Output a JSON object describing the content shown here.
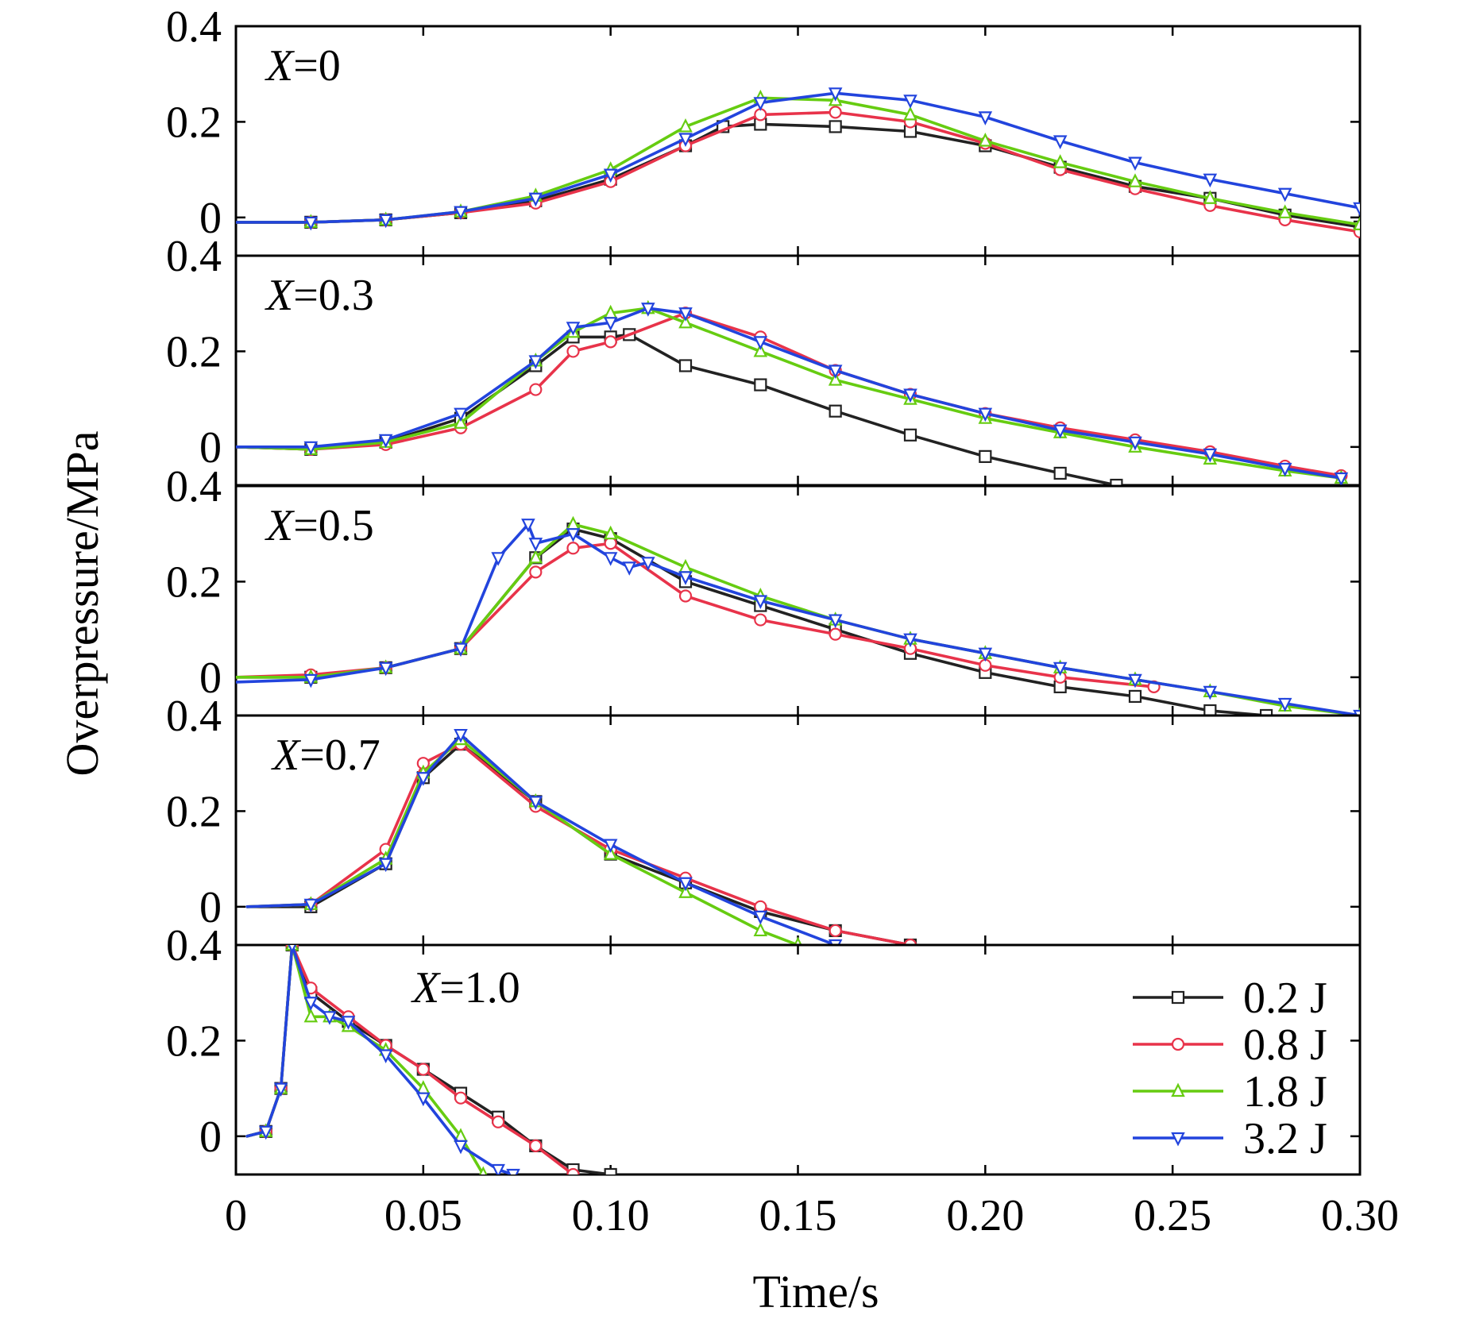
{
  "chart_data": {
    "type": "line",
    "xlabel": "Time/s",
    "ylabel": "Overpressure/MPa",
    "x_ticks": [
      "0",
      "0.05",
      "0.10",
      "0.15",
      "0.20",
      "0.25",
      "0.30"
    ],
    "y_ticks": [
      "0",
      "0.2",
      "0.4"
    ],
    "xlim": [
      0,
      0.3
    ],
    "ylim": [
      -0.08,
      0.4
    ],
    "legend_position": "bottom-right",
    "panels": [
      {
        "label_var": "X",
        "label_val": "=0",
        "series": [
          {
            "name": "0.2 J",
            "color": "#222222",
            "marker": "square",
            "x": [
              0.0,
              0.02,
              0.04,
              0.06,
              0.08,
              0.1,
              0.12,
              0.13,
              0.14,
              0.16,
              0.18,
              0.2,
              0.22,
              0.24,
              0.26,
              0.28,
              0.3
            ],
            "y": [
              -0.01,
              -0.01,
              -0.005,
              0.01,
              0.035,
              0.08,
              0.15,
              0.19,
              0.195,
              0.19,
              0.18,
              0.15,
              0.105,
              0.065,
              0.04,
              0.005,
              -0.02
            ]
          },
          {
            "name": "0.8 J",
            "color": "#e8334a",
            "marker": "circle",
            "x": [
              0.0,
              0.02,
              0.04,
              0.06,
              0.08,
              0.1,
              0.12,
              0.14,
              0.16,
              0.18,
              0.2,
              0.22,
              0.24,
              0.26,
              0.28,
              0.3
            ],
            "y": [
              -0.01,
              -0.01,
              -0.005,
              0.01,
              0.03,
              0.075,
              0.15,
              0.215,
              0.22,
              0.2,
              0.155,
              0.1,
              0.06,
              0.025,
              -0.005,
              -0.03
            ]
          },
          {
            "name": "1.8 J",
            "color": "#66cc11",
            "marker": "triangle-up",
            "x": [
              0.0,
              0.02,
              0.04,
              0.06,
              0.08,
              0.1,
              0.12,
              0.14,
              0.16,
              0.18,
              0.2,
              0.22,
              0.24,
              0.26,
              0.28,
              0.3
            ],
            "y": [
              -0.01,
              -0.01,
              -0.005,
              0.012,
              0.045,
              0.1,
              0.19,
              0.25,
              0.245,
              0.215,
              0.16,
              0.115,
              0.075,
              0.04,
              0.01,
              -0.015
            ]
          },
          {
            "name": "3.2 J",
            "color": "#2244dd",
            "marker": "triangle-down",
            "x": [
              0.0,
              0.02,
              0.04,
              0.06,
              0.08,
              0.1,
              0.12,
              0.14,
              0.16,
              0.18,
              0.2,
              0.22,
              0.24,
              0.26,
              0.28,
              0.3
            ],
            "y": [
              -0.01,
              -0.01,
              -0.005,
              0.012,
              0.04,
              0.09,
              0.165,
              0.24,
              0.26,
              0.245,
              0.21,
              0.16,
              0.115,
              0.08,
              0.05,
              0.02
            ]
          }
        ]
      },
      {
        "label_var": "X",
        "label_val": "=0.3",
        "series": [
          {
            "name": "0.2 J",
            "color": "#222222",
            "marker": "square",
            "x": [
              0.0,
              0.02,
              0.04,
              0.06,
              0.08,
              0.09,
              0.1,
              0.105,
              0.12,
              0.14,
              0.16,
              0.18,
              0.2,
              0.22,
              0.235
            ],
            "y": [
              0.0,
              -0.005,
              0.01,
              0.06,
              0.17,
              0.23,
              0.23,
              0.235,
              0.17,
              0.13,
              0.075,
              0.025,
              -0.02,
              -0.055,
              -0.08
            ]
          },
          {
            "name": "0.8 J",
            "color": "#e8334a",
            "marker": "circle",
            "x": [
              0.0,
              0.02,
              0.04,
              0.06,
              0.08,
              0.09,
              0.1,
              0.12,
              0.14,
              0.16,
              0.18,
              0.2,
              0.22,
              0.24,
              0.26,
              0.28,
              0.295
            ],
            "y": [
              0.0,
              -0.005,
              0.005,
              0.04,
              0.12,
              0.2,
              0.22,
              0.28,
              0.23,
              0.16,
              0.11,
              0.07,
              0.04,
              0.015,
              -0.01,
              -0.04,
              -0.06
            ]
          },
          {
            "name": "1.8 J",
            "color": "#66cc11",
            "marker": "triangle-up",
            "x": [
              0.0,
              0.02,
              0.04,
              0.06,
              0.08,
              0.09,
              0.1,
              0.11,
              0.12,
              0.14,
              0.16,
              0.18,
              0.2,
              0.22,
              0.24,
              0.26,
              0.28,
              0.295
            ],
            "y": [
              0.0,
              -0.005,
              0.01,
              0.05,
              0.18,
              0.24,
              0.28,
              0.29,
              0.26,
              0.2,
              0.14,
              0.1,
              0.06,
              0.03,
              0.0,
              -0.025,
              -0.05,
              -0.065
            ]
          },
          {
            "name": "3.2 J",
            "color": "#2244dd",
            "marker": "triangle-down",
            "x": [
              0.0,
              0.02,
              0.04,
              0.06,
              0.08,
              0.09,
              0.1,
              0.11,
              0.12,
              0.14,
              0.16,
              0.18,
              0.2,
              0.22,
              0.24,
              0.26,
              0.28,
              0.295
            ],
            "y": [
              0.0,
              0.0,
              0.015,
              0.07,
              0.18,
              0.25,
              0.26,
              0.29,
              0.28,
              0.22,
              0.16,
              0.11,
              0.07,
              0.035,
              0.01,
              -0.015,
              -0.045,
              -0.065
            ]
          }
        ]
      },
      {
        "label_var": "X",
        "label_val": "=0.5",
        "series": [
          {
            "name": "0.2 J",
            "color": "#222222",
            "marker": "square",
            "x": [
              0.0,
              0.02,
              0.04,
              0.06,
              0.08,
              0.09,
              0.1,
              0.12,
              0.14,
              0.16,
              0.18,
              0.2,
              0.22,
              0.24,
              0.26,
              0.275
            ],
            "y": [
              0.0,
              0.0,
              0.02,
              0.06,
              0.25,
              0.31,
              0.29,
              0.2,
              0.15,
              0.1,
              0.05,
              0.01,
              -0.02,
              -0.04,
              -0.07,
              -0.08
            ]
          },
          {
            "name": "0.8 J",
            "color": "#e8334a",
            "marker": "circle",
            "x": [
              0.0,
              0.02,
              0.04,
              0.06,
              0.08,
              0.09,
              0.1,
              0.12,
              0.14,
              0.16,
              0.18,
              0.2,
              0.22,
              0.245
            ],
            "y": [
              0.0,
              0.005,
              0.02,
              0.06,
              0.22,
              0.27,
              0.28,
              0.17,
              0.12,
              0.09,
              0.06,
              0.025,
              0.0,
              -0.02
            ]
          },
          {
            "name": "1.8 J",
            "color": "#66cc11",
            "marker": "triangle-up",
            "x": [
              0.0,
              0.02,
              0.04,
              0.06,
              0.08,
              0.09,
              0.1,
              0.12,
              0.14,
              0.16,
              0.18,
              0.2,
              0.22,
              0.24,
              0.26,
              0.28,
              0.3
            ],
            "y": [
              0.0,
              0.0,
              0.02,
              0.06,
              0.25,
              0.32,
              0.3,
              0.23,
              0.17,
              0.12,
              0.08,
              0.05,
              0.02,
              -0.005,
              -0.03,
              -0.06,
              -0.08
            ]
          },
          {
            "name": "3.2 J",
            "color": "#2244dd",
            "marker": "triangle-down",
            "x": [
              0.0,
              0.02,
              0.04,
              0.06,
              0.07,
              0.078,
              0.08,
              0.09,
              0.1,
              0.105,
              0.11,
              0.12,
              0.14,
              0.16,
              0.18,
              0.2,
              0.22,
              0.24,
              0.26,
              0.28,
              0.3
            ],
            "y": [
              -0.01,
              -0.005,
              0.02,
              0.06,
              0.25,
              0.32,
              0.28,
              0.3,
              0.25,
              0.23,
              0.24,
              0.21,
              0.16,
              0.12,
              0.08,
              0.05,
              0.02,
              -0.005,
              -0.03,
              -0.055,
              -0.08
            ]
          }
        ]
      },
      {
        "label_var": "X",
        "label_val": "=0.7",
        "series": [
          {
            "name": "0.2 J",
            "color": "#222222",
            "marker": "square",
            "x": [
              0.003,
              0.02,
              0.04,
              0.05,
              0.06,
              0.08,
              0.1,
              0.12,
              0.14,
              0.16,
              0.18
            ],
            "y": [
              0.0,
              0.0,
              0.09,
              0.27,
              0.34,
              0.22,
              0.11,
              0.05,
              -0.01,
              -0.05,
              -0.08
            ]
          },
          {
            "name": "0.8 J",
            "color": "#e8334a",
            "marker": "circle",
            "x": [
              0.003,
              0.02,
              0.04,
              0.05,
              0.06,
              0.08,
              0.1,
              0.12,
              0.14,
              0.16,
              0.18
            ],
            "y": [
              0.0,
              0.005,
              0.12,
              0.3,
              0.34,
              0.21,
              0.12,
              0.06,
              0.0,
              -0.05,
              -0.08
            ]
          },
          {
            "name": "1.8 J",
            "color": "#66cc11",
            "marker": "triangle-up",
            "x": [
              0.003,
              0.02,
              0.04,
              0.05,
              0.06,
              0.08,
              0.1,
              0.12,
              0.14,
              0.15
            ],
            "y": [
              0.0,
              0.005,
              0.1,
              0.28,
              0.35,
              0.22,
              0.11,
              0.03,
              -0.05,
              -0.08
            ]
          },
          {
            "name": "3.2 J",
            "color": "#2244dd",
            "marker": "triangle-down",
            "x": [
              0.003,
              0.02,
              0.04,
              0.05,
              0.06,
              0.08,
              0.1,
              0.12,
              0.14,
              0.16
            ],
            "y": [
              0.0,
              0.005,
              0.09,
              0.27,
              0.36,
              0.22,
              0.13,
              0.05,
              -0.02,
              -0.08
            ]
          }
        ]
      },
      {
        "label_var": "X",
        "label_val": "=1.0",
        "series": [
          {
            "name": "0.2 J",
            "color": "#222222",
            "marker": "square",
            "x": [
              0.003,
              0.008,
              0.012,
              0.015,
              0.02,
              0.03,
              0.04,
              0.05,
              0.06,
              0.07,
              0.08,
              0.09,
              0.1
            ],
            "y": [
              0.0,
              0.01,
              0.1,
              0.4,
              0.3,
              0.24,
              0.19,
              0.14,
              0.09,
              0.04,
              -0.02,
              -0.07,
              -0.08
            ]
          },
          {
            "name": "0.8 J",
            "color": "#e8334a",
            "marker": "circle",
            "x": [
              0.003,
              0.008,
              0.012,
              0.015,
              0.02,
              0.03,
              0.04,
              0.05,
              0.06,
              0.07,
              0.08,
              0.09
            ],
            "y": [
              0.0,
              0.01,
              0.1,
              0.4,
              0.31,
              0.25,
              0.19,
              0.14,
              0.08,
              0.03,
              -0.02,
              -0.08
            ]
          },
          {
            "name": "1.8 J",
            "color": "#66cc11",
            "marker": "triangle-up",
            "x": [
              0.003,
              0.008,
              0.012,
              0.015,
              0.02,
              0.025,
              0.03,
              0.04,
              0.05,
              0.06,
              0.066
            ],
            "y": [
              0.0,
              0.01,
              0.1,
              0.4,
              0.25,
              0.25,
              0.23,
              0.18,
              0.1,
              0.0,
              -0.08
            ]
          },
          {
            "name": "3.2 J",
            "color": "#2244dd",
            "marker": "triangle-down",
            "x": [
              0.003,
              0.008,
              0.012,
              0.015,
              0.02,
              0.025,
              0.03,
              0.04,
              0.05,
              0.06,
              0.07,
              0.074
            ],
            "y": [
              0.0,
              0.01,
              0.1,
              0.4,
              0.28,
              0.25,
              0.24,
              0.17,
              0.08,
              -0.02,
              -0.07,
              -0.08
            ]
          }
        ]
      }
    ],
    "legend": [
      {
        "label": "0.2 J",
        "color": "#222222",
        "marker": "square"
      },
      {
        "label": "0.8 J",
        "color": "#e8334a",
        "marker": "circle"
      },
      {
        "label": "1.8 J",
        "color": "#66cc11",
        "marker": "triangle-up"
      },
      {
        "label": "3.2 J",
        "color": "#2244dd",
        "marker": "triangle-down"
      }
    ]
  }
}
